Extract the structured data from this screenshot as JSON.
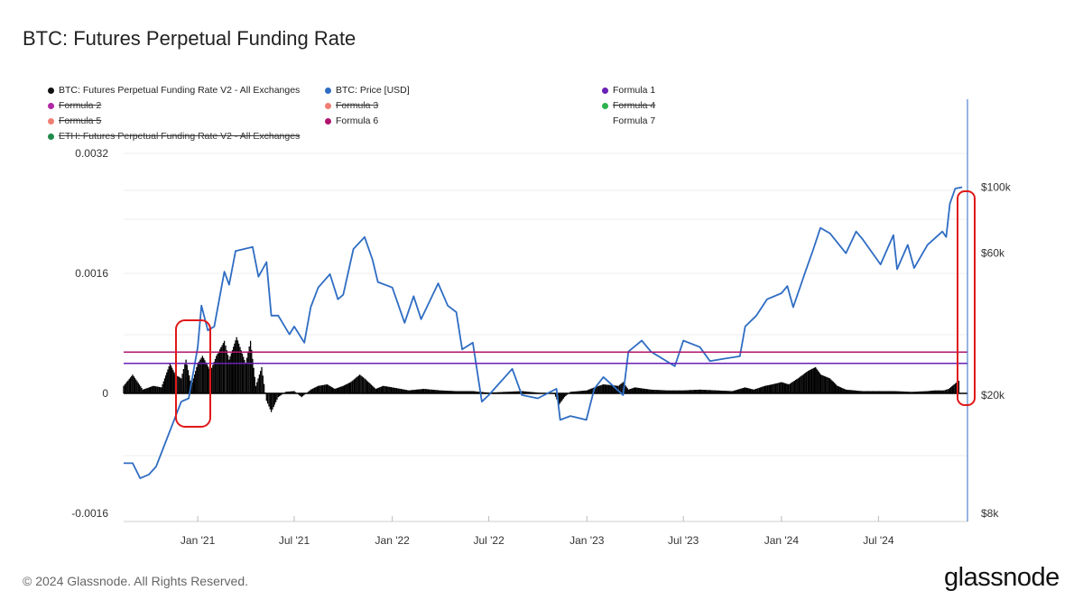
{
  "title": "BTC: Futures Perpetual Funding Rate",
  "legend": [
    {
      "label": "BTC: Futures Perpetual Funding Rate V2 - All Exchanges",
      "color": "#111111",
      "struck": false
    },
    {
      "label": "BTC: Price [USD]",
      "color": "#2f6dc3",
      "struck": false
    },
    {
      "label": "Formula 1",
      "color": "#6a1fb5",
      "struck": false
    },
    {
      "label": "Formula 2",
      "color": "#b028a6",
      "struck": true
    },
    {
      "label": "Formula 3",
      "color": "#f07e72",
      "struck": true
    },
    {
      "label": "Formula 4",
      "color": "#2bb24c",
      "struck": true
    },
    {
      "label": "Formula 5",
      "color": "#f07e72",
      "struck": true
    },
    {
      "label": "Formula 6",
      "color": "#b0146e",
      "struck": false
    },
    {
      "label": "Formula 7",
      "color": "",
      "struck": false
    },
    {
      "label": "ETH: Futures Perpetual Funding Rate V2 - All Exchanges",
      "color": "#1f8a4c",
      "struck": true
    }
  ],
  "chart_data": {
    "type": "line",
    "title": "BTC: Futures Perpetual Funding Rate",
    "x_ticks": [
      "Jan '21",
      "Jul '21",
      "Jan '22",
      "Jul '22",
      "Jan '23",
      "Jul '23",
      "Jan '24",
      "Jul '24"
    ],
    "y_left_ticks": [
      "0.0032",
      "0.0016",
      "0",
      "-0.0016"
    ],
    "y_left_range": [
      -0.0016,
      0.0032
    ],
    "y_right_ticks": [
      "$100k",
      "$60k",
      "$20k",
      "$8k"
    ],
    "y_right_scale": "log",
    "y_right_range": [
      8000,
      130000
    ],
    "x_range": [
      "2020-08-15",
      "2024-12-15"
    ],
    "grid": true,
    "series": [
      {
        "name": "BTC: Futures Perpetual Funding Rate V2 - All Exchanges",
        "axis": "left",
        "render": "area",
        "color": "#000000",
        "x": [
          "2020-08-15",
          "2020-09-01",
          "2020-09-20",
          "2020-10-10",
          "2020-10-25",
          "2020-11-10",
          "2020-11-20",
          "2020-12-01",
          "2020-12-10",
          "2020-12-20",
          "2021-01-01",
          "2021-01-10",
          "2021-01-25",
          "2021-02-05",
          "2021-02-20",
          "2021-03-01",
          "2021-03-15",
          "2021-04-01",
          "2021-04-10",
          "2021-04-20",
          "2021-05-01",
          "2021-05-10",
          "2021-05-19",
          "2021-06-01",
          "2021-06-15",
          "2021-07-01",
          "2021-07-15",
          "2021-08-01",
          "2021-08-15",
          "2021-09-01",
          "2021-09-15",
          "2021-10-01",
          "2021-10-15",
          "2021-11-01",
          "2021-11-10",
          "2021-12-01",
          "2021-12-15",
          "2022-01-01",
          "2022-02-01",
          "2022-03-01",
          "2022-04-01",
          "2022-05-01",
          "2022-06-01",
          "2022-06-15",
          "2022-07-01",
          "2022-08-01",
          "2022-09-01",
          "2022-10-01",
          "2022-11-01",
          "2022-11-10",
          "2022-11-20",
          "2022-12-01",
          "2023-01-01",
          "2023-01-15",
          "2023-02-01",
          "2023-03-01",
          "2023-03-10",
          "2023-03-20",
          "2023-04-01",
          "2023-05-01",
          "2023-06-01",
          "2023-07-01",
          "2023-08-01",
          "2023-09-01",
          "2023-10-01",
          "2023-10-25",
          "2023-11-10",
          "2023-12-01",
          "2023-12-15",
          "2024-01-01",
          "2024-01-15",
          "2024-02-01",
          "2024-02-20",
          "2024-03-05",
          "2024-03-15",
          "2024-04-01",
          "2024-04-15",
          "2024-05-01",
          "2024-06-01",
          "2024-07-01",
          "2024-08-01",
          "2024-09-01",
          "2024-10-01",
          "2024-10-15",
          "2024-11-01",
          "2024-11-10",
          "2024-11-20",
          "2024-12-01"
        ],
        "values": [
          0.0001,
          0.00025,
          5e-05,
          0.0001,
          8e-05,
          0.0004,
          0.00025,
          0.0002,
          0.00045,
          0.0001,
          0.0004,
          0.0005,
          0.0003,
          0.0005,
          0.0007,
          0.00045,
          0.00075,
          0.0004,
          0.0007,
          0.0001,
          0.00035,
          -0.0001,
          -0.00025,
          -5e-05,
          2e-05,
          3e-05,
          -5e-05,
          5e-05,
          0.0001,
          0.00012,
          6e-05,
          0.0001,
          0.00015,
          0.00025,
          0.0002,
          6e-05,
          0.0001,
          8e-05,
          4e-05,
          6e-05,
          4e-05,
          3e-05,
          3e-05,
          2e-05,
          1e-05,
          2e-05,
          3e-05,
          1e-05,
          -1e-05,
          -0.00015,
          -5e-05,
          2e-05,
          4e-05,
          8e-05,
          0.00012,
          0.0001,
          0.00015,
          5e-05,
          8e-05,
          5e-05,
          4e-05,
          4e-05,
          5e-05,
          4e-05,
          3e-05,
          8e-05,
          5e-05,
          0.0001,
          0.00012,
          0.00015,
          0.00012,
          0.0002,
          0.0003,
          0.00035,
          0.00025,
          0.0002,
          0.0001,
          5e-05,
          3e-05,
          3e-05,
          3e-05,
          2e-05,
          3e-05,
          4e-05,
          4e-05,
          6e-05,
          0.00012,
          0.00018
        ]
      },
      {
        "name": "BTC: Price [USD]",
        "axis": "right",
        "render": "line",
        "color": "#2f6dc3",
        "x": [
          "2020-08-15",
          "2020-09-01",
          "2020-09-15",
          "2020-10-01",
          "2020-10-15",
          "2020-11-01",
          "2020-11-15",
          "2020-12-01",
          "2020-12-15",
          "2021-01-01",
          "2021-01-08",
          "2021-01-20",
          "2021-02-01",
          "2021-02-20",
          "2021-03-01",
          "2021-03-13",
          "2021-04-14",
          "2021-04-25",
          "2021-05-10",
          "2021-05-19",
          "2021-06-01",
          "2021-06-22",
          "2021-07-01",
          "2021-07-20",
          "2021-08-01",
          "2021-08-15",
          "2021-09-06",
          "2021-09-21",
          "2021-10-01",
          "2021-10-20",
          "2021-11-10",
          "2021-11-25",
          "2021-12-05",
          "2022-01-01",
          "2022-01-24",
          "2022-02-10",
          "2022-02-24",
          "2022-03-28",
          "2022-04-15",
          "2022-05-01",
          "2022-05-12",
          "2022-06-01",
          "2022-06-18",
          "2022-07-01",
          "2022-08-14",
          "2022-09-01",
          "2022-10-01",
          "2022-11-05",
          "2022-11-12",
          "2022-12-01",
          "2022-12-31",
          "2023-01-15",
          "2023-02-01",
          "2023-03-10",
          "2023-03-20",
          "2023-04-14",
          "2023-05-01",
          "2023-06-15",
          "2023-07-01",
          "2023-08-01",
          "2023-08-20",
          "2023-09-15",
          "2023-10-15",
          "2023-10-25",
          "2023-11-15",
          "2023-12-05",
          "2024-01-01",
          "2024-01-12",
          "2024-01-23",
          "2024-02-15",
          "2024-03-01",
          "2024-03-14",
          "2024-04-01",
          "2024-05-01",
          "2024-05-20",
          "2024-06-01",
          "2024-07-05",
          "2024-07-29",
          "2024-08-05",
          "2024-08-25",
          "2024-09-06",
          "2024-10-01",
          "2024-10-29",
          "2024-11-05",
          "2024-11-12",
          "2024-11-22",
          "2024-12-05"
        ],
        "values": [
          11800,
          11800,
          10500,
          10800,
          11500,
          13800,
          16000,
          19000,
          19500,
          29000,
          40000,
          33000,
          34000,
          52000,
          47000,
          61000,
          63000,
          50000,
          56000,
          37000,
          37000,
          32000,
          34000,
          30000,
          39500,
          46000,
          51000,
          42000,
          43500,
          62000,
          68000,
          57000,
          48000,
          46000,
          35000,
          43000,
          36000,
          47500,
          40000,
          38000,
          28500,
          30000,
          19000,
          20000,
          24500,
          20000,
          19500,
          21000,
          16500,
          17000,
          16500,
          21000,
          23000,
          20000,
          28000,
          30500,
          28000,
          25000,
          30500,
          29000,
          26000,
          26500,
          27000,
          34000,
          37000,
          42000,
          44000,
          46500,
          39500,
          52000,
          62000,
          73000,
          70000,
          60000,
          71000,
          67000,
          55000,
          69000,
          53000,
          64000,
          53500,
          64000,
          71000,
          68000,
          88000,
          99000,
          100000
        ]
      },
      {
        "name": "Formula 1",
        "axis": "left",
        "render": "hline",
        "color": "#6a1fb5",
        "values": [
          0.0004
        ]
      },
      {
        "name": "Formula 6",
        "axis": "left",
        "render": "hline",
        "color": "#b0146e",
        "values": [
          0.00055
        ]
      }
    ]
  },
  "footer": "© 2024 Glassnode. All Rights Reserved.",
  "brand": "glassnode"
}
